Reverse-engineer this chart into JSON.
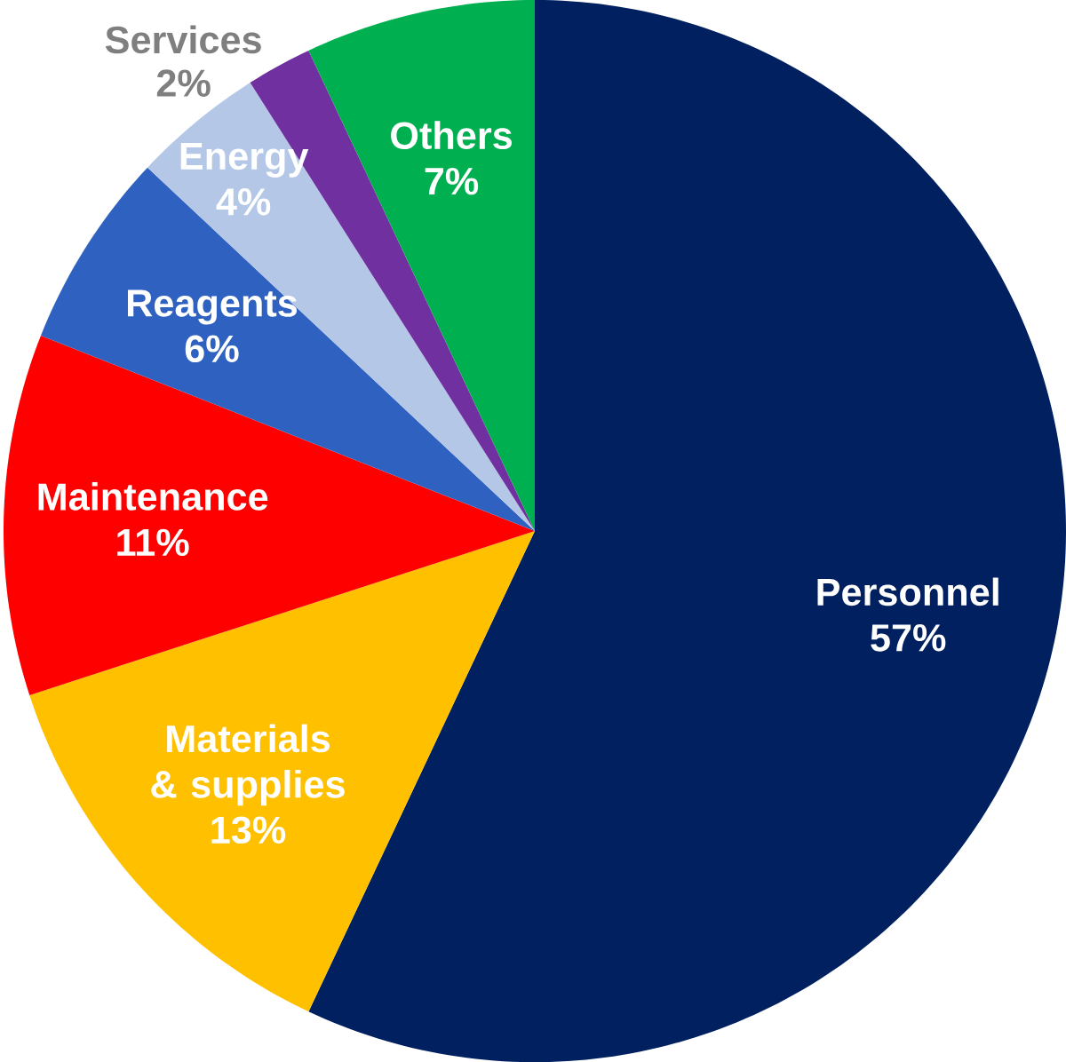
{
  "chart_data": {
    "type": "pie",
    "categories": [
      "Personnel",
      "Materials & supplies",
      "Maintenance",
      "Reagents",
      "Energy",
      "Services",
      "Others"
    ],
    "values": [
      57,
      13,
      11,
      6,
      4,
      2,
      7
    ],
    "value_labels": [
      "57%",
      "13%",
      "11%",
      "6%",
      "4%",
      "2%",
      "7%"
    ],
    "colors": [
      "#002060",
      "#ffc000",
      "#ff0000",
      "#2f62c0",
      "#b4c7e7",
      "#7030a0",
      "#00b050"
    ]
  }
}
